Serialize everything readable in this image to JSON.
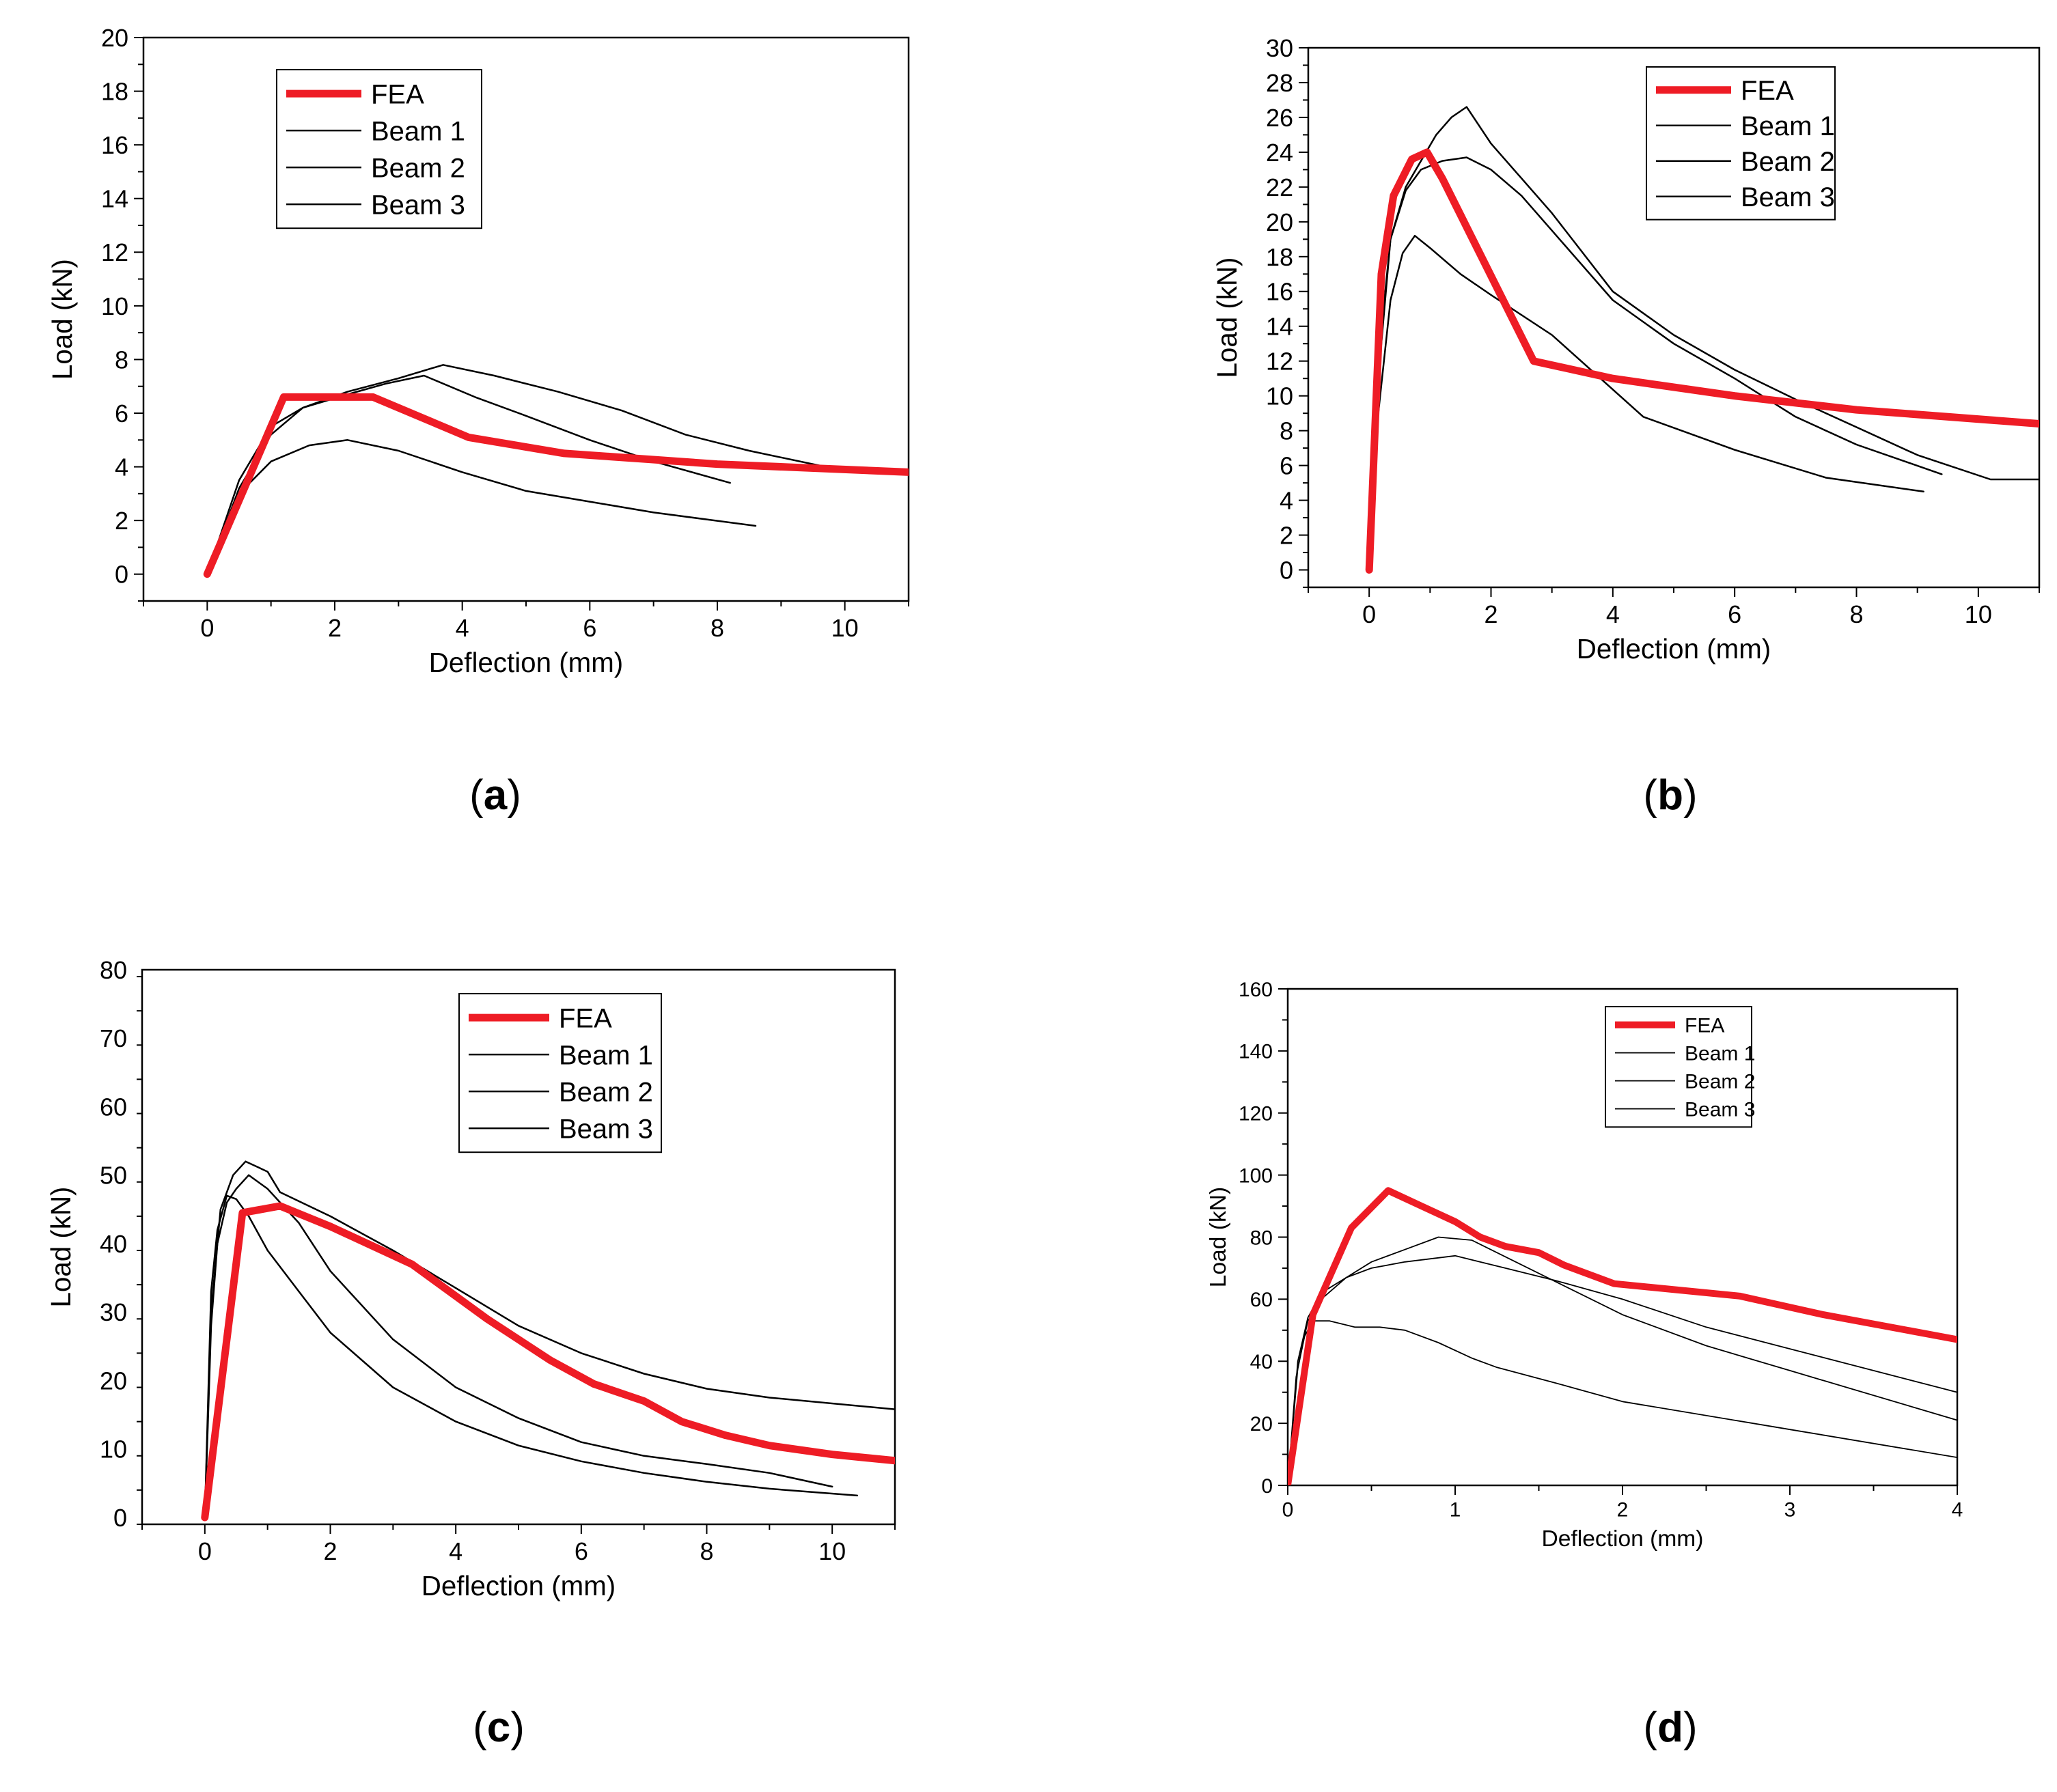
{
  "chart_data": [
    {
      "type": "line",
      "panel_label": "(a)",
      "xlabel": "Deflection (mm)",
      "ylabel": "Load (kN)",
      "xlim": [
        -1,
        11
      ],
      "ylim": [
        -1,
        20
      ],
      "xticks": [
        0,
        2,
        4,
        6,
        8,
        10
      ],
      "yticks": [
        0,
        2,
        4,
        6,
        8,
        10,
        12,
        14,
        16,
        18,
        20
      ],
      "legend": "top-left",
      "series": [
        {
          "name": "FEA",
          "color": "#ee1c25",
          "x": [
            0,
            1.2,
            2.6,
            4.1,
            5.6,
            8,
            11
          ],
          "y": [
            0,
            6.6,
            6.6,
            5.1,
            4.5,
            4.1,
            3.8
          ]
        },
        {
          "name": "Beam 1",
          "color": "#000000",
          "x": [
            0,
            0.5,
            1,
            1.5,
            2.2,
            3,
            3.7,
            4.5,
            5.5,
            6.5,
            7.5,
            8.5,
            9.7
          ],
          "y": [
            0,
            3.2,
            5.2,
            6.2,
            6.8,
            7.3,
            7.8,
            7.4,
            6.8,
            6.1,
            5.2,
            4.6,
            4.0
          ]
        },
        {
          "name": "Beam 2",
          "color": "#000000",
          "x": [
            0,
            0.5,
            1,
            1.5,
            2.2,
            2.8,
            3.4,
            4.2,
            5,
            6,
            7,
            8.2
          ],
          "y": [
            0,
            3.5,
            5.5,
            6.2,
            6.7,
            7.1,
            7.4,
            6.6,
            5.9,
            5.0,
            4.2,
            3.4
          ]
        },
        {
          "name": "Beam 3",
          "color": "#000000",
          "x": [
            0,
            0.5,
            1,
            1.6,
            2.2,
            3,
            4,
            5,
            6,
            7,
            8.6
          ],
          "y": [
            0,
            3.0,
            4.2,
            4.8,
            5.0,
            4.6,
            3.8,
            3.1,
            2.7,
            2.3,
            1.8
          ]
        }
      ]
    },
    {
      "type": "line",
      "panel_label": "(b)",
      "xlabel": "Deflection (mm)",
      "ylabel": "Load (kN)",
      "xlim": [
        -1,
        11
      ],
      "ylim": [
        -1,
        30
      ],
      "xticks": [
        0,
        2,
        4,
        6,
        8,
        10
      ],
      "yticks": [
        0,
        2,
        4,
        6,
        8,
        10,
        12,
        14,
        16,
        18,
        20,
        22,
        24,
        26,
        28,
        30
      ],
      "legend": "top-right",
      "series": [
        {
          "name": "FEA",
          "color": "#ee1c25",
          "x": [
            0,
            0.2,
            0.4,
            0.7,
            0.95,
            1.2,
            2.7,
            4,
            6,
            8,
            11
          ],
          "y": [
            0,
            17,
            21.5,
            23.6,
            24,
            22.5,
            12,
            11,
            10,
            9.2,
            8.4
          ]
        },
        {
          "name": "Beam 1",
          "color": "#000000",
          "x": [
            0,
            0.15,
            0.35,
            0.6,
            0.85,
            1.1,
            1.35,
            1.6,
            2,
            2.5,
            3,
            4,
            5,
            6,
            7,
            8,
            9,
            10.2,
            11
          ],
          "y": [
            0,
            11,
            19,
            22,
            23.5,
            25,
            26,
            26.6,
            24.5,
            22.5,
            20.5,
            16,
            13.5,
            11.5,
            9.8,
            8.2,
            6.6,
            5.2,
            5.2
          ]
        },
        {
          "name": "Beam 2",
          "color": "#000000",
          "x": [
            0,
            0.15,
            0.35,
            0.6,
            0.85,
            1.2,
            1.6,
            2,
            2.5,
            3,
            4,
            5,
            6,
            7,
            8,
            9.4
          ],
          "y": [
            0,
            12,
            19,
            21.8,
            23,
            23.5,
            23.7,
            23,
            21.5,
            19.5,
            15.5,
            13,
            11,
            8.8,
            7.2,
            5.5
          ]
        },
        {
          "name": "Beam 3",
          "color": "#000000",
          "x": [
            0,
            0.15,
            0.35,
            0.55,
            0.75,
            1,
            1.5,
            2,
            3,
            4.5,
            6,
            7.5,
            9.1
          ],
          "y": [
            0,
            9,
            15.5,
            18.2,
            19.2,
            18.5,
            17,
            15.8,
            13.5,
            8.8,
            6.9,
            5.3,
            4.5
          ]
        }
      ]
    },
    {
      "type": "line",
      "panel_label": "(c)",
      "xlabel": "Deflection (mm)",
      "ylabel": "Load (kN)",
      "xlim": [
        -1,
        11
      ],
      "ylim": [
        -1,
        80
      ],
      "xticks": [
        0,
        2,
        4,
        6,
        8,
        10
      ],
      "yticks": [
        0,
        10,
        20,
        30,
        40,
        50,
        60,
        70,
        80
      ],
      "legend": "top-center",
      "series": [
        {
          "name": "FEA",
          "color": "#ee1c25",
          "x": [
            0,
            0.6,
            1.2,
            2,
            3.3,
            4.5,
            5.5,
            6.2,
            7,
            7.6,
            8.3,
            9,
            10,
            11
          ],
          "y": [
            0,
            44.5,
            45.5,
            42.5,
            37,
            29,
            23,
            19.5,
            17,
            14,
            12,
            10.5,
            9.2,
            8.3
          ]
        },
        {
          "name": "Beam 1",
          "color": "#000000",
          "x": [
            0,
            0.1,
            0.25,
            0.45,
            0.65,
            1,
            1.2,
            2,
            3,
            4,
            5,
            6,
            7,
            8,
            9,
            11
          ],
          "y": [
            0,
            30,
            45,
            50,
            52,
            50.5,
            47.5,
            44,
            39,
            33.5,
            28,
            24,
            21,
            18.8,
            17.5,
            15.8
          ]
        },
        {
          "name": "Beam 2",
          "color": "#000000",
          "x": [
            0,
            0.1,
            0.2,
            0.35,
            0.5,
            0.7,
            1,
            1.5,
            2,
            3,
            4,
            5,
            6,
            7,
            8,
            9,
            10
          ],
          "y": [
            0,
            28,
            40,
            46,
            48,
            50,
            48,
            43,
            36,
            26,
            19,
            14.5,
            11,
            9,
            7.8,
            6.5,
            4.5
          ]
        },
        {
          "name": "Beam 3",
          "color": "#000000",
          "x": [
            0,
            0.1,
            0.2,
            0.35,
            0.5,
            0.7,
            1,
            1.5,
            2,
            3,
            4,
            5,
            6,
            7,
            8,
            9,
            10.4
          ],
          "y": [
            0,
            33,
            42,
            47,
            46.5,
            44,
            39,
            33,
            27,
            19,
            14,
            10.5,
            8.2,
            6.5,
            5.2,
            4.2,
            3.2
          ]
        }
      ]
    },
    {
      "type": "line",
      "panel_label": "(d)",
      "xlabel": "Deflection (mm)",
      "ylabel": "Load (kN)",
      "xlim": [
        0,
        4
      ],
      "ylim": [
        0,
        160
      ],
      "xticks": [
        0,
        1,
        2,
        3,
        4
      ],
      "yticks": [
        0,
        20,
        40,
        60,
        80,
        100,
        120,
        140,
        160
      ],
      "legend": "top-center",
      "series": [
        {
          "name": "FEA",
          "color": "#ee1c25",
          "x": [
            0,
            0.15,
            0.38,
            0.6,
            0.8,
            1,
            1.15,
            1.3,
            1.5,
            1.65,
            1.95,
            2.7,
            3.2,
            4
          ],
          "y": [
            0,
            55,
            83,
            95,
            90,
            85,
            80,
            77,
            75,
            71,
            65,
            61,
            55,
            47
          ]
        },
        {
          "name": "Beam 1",
          "color": "#000000",
          "x": [
            0,
            0.06,
            0.12,
            0.2,
            0.35,
            0.5,
            0.7,
            0.9,
            1.1,
            1.4,
            2,
            2.5,
            3,
            4
          ],
          "y": [
            0,
            38,
            53,
            60,
            67,
            72,
            76,
            80,
            79,
            71,
            55,
            45,
            37,
            21
          ]
        },
        {
          "name": "Beam 2",
          "color": "#000000",
          "x": [
            0,
            0.06,
            0.12,
            0.2,
            0.35,
            0.5,
            0.7,
            1,
            1.3,
            1.6,
            2,
            2.5,
            3,
            4
          ],
          "y": [
            0,
            40,
            54,
            62,
            67,
            70,
            72,
            74,
            70,
            66,
            60,
            51,
            44,
            30
          ]
        },
        {
          "name": "Beam 3",
          "color": "#000000",
          "x": [
            0,
            0.05,
            0.1,
            0.15,
            0.25,
            0.4,
            0.55,
            0.7,
            0.9,
            1.1,
            1.25,
            1.6,
            2,
            3,
            4
          ],
          "y": [
            0,
            35,
            48,
            53,
            53,
            51,
            51,
            50,
            46,
            41,
            38,
            33,
            27,
            18,
            9
          ]
        }
      ]
    }
  ]
}
